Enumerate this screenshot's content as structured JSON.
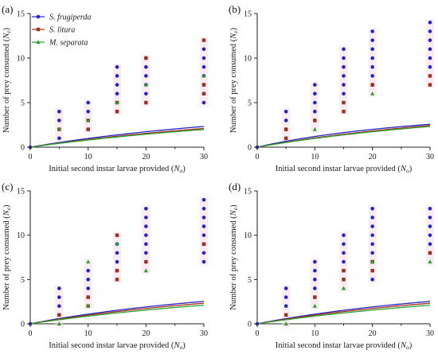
{
  "figure": {
    "xlabel_prefix": "Initial second instar larvae provided (",
    "xlabel_var": "N",
    "xlabel_sub": "o",
    "xlabel_suffix": ")",
    "ylabel_prefix": "Number of prey consumed (",
    "ylabel_var": "N",
    "ylabel_sub": "e",
    "ylabel_suffix": ")",
    "legend": [
      {
        "name": "S. frugiperda",
        "color": "#2323c8",
        "marker": "circle"
      },
      {
        "name": "S. litura",
        "color": "#a0301e",
        "marker": "square"
      },
      {
        "name": "M. separata",
        "color": "#2ca02c",
        "marker": "triangle"
      }
    ]
  },
  "chart_data": [
    {
      "panel": "(a)",
      "type": "scatter",
      "xlim": [
        0,
        30
      ],
      "ylim": [
        0,
        15
      ],
      "xticks": [
        0,
        10,
        20,
        30
      ],
      "yticks": [
        0,
        5,
        10,
        15
      ],
      "series": [
        {
          "name": "S. frugiperda",
          "color": "#2323c8",
          "marker": "circle",
          "curve": {
            "a": 0.075,
            "b": 0.02
          },
          "points": [
            [
              5,
              1
            ],
            [
              5,
              2
            ],
            [
              5,
              3
            ],
            [
              5,
              4
            ],
            [
              10,
              2
            ],
            [
              10,
              3
            ],
            [
              10,
              4
            ],
            [
              10,
              5
            ],
            [
              15,
              5
            ],
            [
              15,
              6
            ],
            [
              15,
              7
            ],
            [
              15,
              8
            ],
            [
              15,
              9
            ],
            [
              20,
              6
            ],
            [
              20,
              7
            ],
            [
              20,
              8
            ],
            [
              20,
              9
            ],
            [
              20,
              10
            ],
            [
              30,
              5
            ],
            [
              30,
              6
            ],
            [
              30,
              7
            ],
            [
              30,
              8
            ],
            [
              30,
              9
            ],
            [
              30,
              10
            ],
            [
              30,
              11
            ]
          ]
        },
        {
          "name": "S. litura",
          "color": "#a0301e",
          "marker": "square",
          "curve": {
            "a": 0.065,
            "b": 0.02
          },
          "points": [
            [
              5,
              2
            ],
            [
              10,
              2
            ],
            [
              10,
              3
            ],
            [
              15,
              4
            ],
            [
              15,
              5
            ],
            [
              20,
              5
            ],
            [
              20,
              10
            ],
            [
              30,
              6
            ],
            [
              30,
              7
            ],
            [
              30,
              12
            ]
          ]
        },
        {
          "name": "M. separata",
          "color": "#2ca02c",
          "marker": "triangle",
          "curve": {
            "a": 0.06,
            "b": 0.02
          },
          "points": [
            [
              5,
              2
            ],
            [
              10,
              3
            ],
            [
              15,
              5
            ],
            [
              20,
              7
            ],
            [
              30,
              8
            ]
          ]
        }
      ]
    },
    {
      "panel": "(b)",
      "type": "scatter",
      "xlim": [
        0,
        30
      ],
      "ylim": [
        0,
        15
      ],
      "xticks": [
        0,
        10,
        20,
        30
      ],
      "yticks": [
        0,
        5,
        10,
        15
      ],
      "series": [
        {
          "name": "S. frugiperda",
          "color": "#2323c8",
          "marker": "circle",
          "curve": {
            "a": 0.1,
            "b": 0.025
          },
          "points": [
            [
              5,
              2
            ],
            [
              5,
              3
            ],
            [
              5,
              4
            ],
            [
              10,
              3
            ],
            [
              10,
              4
            ],
            [
              10,
              5
            ],
            [
              10,
              6
            ],
            [
              10,
              7
            ],
            [
              15,
              6
            ],
            [
              15,
              7
            ],
            [
              15,
              8
            ],
            [
              15,
              9
            ],
            [
              15,
              10
            ],
            [
              15,
              11
            ],
            [
              20,
              7
            ],
            [
              20,
              8
            ],
            [
              20,
              9
            ],
            [
              20,
              10
            ],
            [
              20,
              11
            ],
            [
              20,
              12
            ],
            [
              20,
              13
            ],
            [
              30,
              9
            ],
            [
              30,
              10
            ],
            [
              30,
              11
            ],
            [
              30,
              12
            ],
            [
              30,
              13
            ],
            [
              30,
              14
            ]
          ]
        },
        {
          "name": "S. litura",
          "color": "#a0301e",
          "marker": "square",
          "curve": {
            "a": 0.08,
            "b": 0.02
          },
          "points": [
            [
              5,
              1
            ],
            [
              5,
              2
            ],
            [
              10,
              3
            ],
            [
              15,
              4
            ],
            [
              15,
              5
            ],
            [
              20,
              7
            ],
            [
              30,
              7
            ],
            [
              30,
              8
            ]
          ]
        },
        {
          "name": "M. separata",
          "color": "#2ca02c",
          "marker": "triangle",
          "curve": {
            "a": 0.075,
            "b": 0.02
          },
          "points": [
            [
              10,
              2
            ],
            [
              20,
              6
            ]
          ]
        }
      ]
    },
    {
      "panel": "(c)",
      "type": "scatter",
      "xlim": [
        0,
        30
      ],
      "ylim": [
        0,
        15
      ],
      "xticks": [
        0,
        10,
        20,
        30
      ],
      "yticks": [
        0,
        5,
        10,
        15
      ],
      "series": [
        {
          "name": "S. frugiperda",
          "color": "#2323c8",
          "marker": "circle",
          "curve": {
            "a": 0.085,
            "b": 0.02
          },
          "points": [
            [
              5,
              1
            ],
            [
              5,
              2
            ],
            [
              5,
              3
            ],
            [
              5,
              4
            ],
            [
              10,
              3
            ],
            [
              10,
              4
            ],
            [
              10,
              5
            ],
            [
              10,
              6
            ],
            [
              15,
              6
            ],
            [
              15,
              7
            ],
            [
              15,
              8
            ],
            [
              15,
              9
            ],
            [
              20,
              8
            ],
            [
              20,
              9
            ],
            [
              20,
              10
            ],
            [
              20,
              11
            ],
            [
              20,
              12
            ],
            [
              20,
              13
            ],
            [
              30,
              7
            ],
            [
              30,
              8
            ],
            [
              30,
              9
            ],
            [
              30,
              10
            ],
            [
              30,
              11
            ],
            [
              30,
              12
            ],
            [
              30,
              13
            ],
            [
              30,
              14
            ]
          ]
        },
        {
          "name": "S. litura",
          "color": "#a0301e",
          "marker": "square",
          "curve": {
            "a": 0.075,
            "b": 0.02
          },
          "points": [
            [
              5,
              1
            ],
            [
              10,
              2
            ],
            [
              10,
              3
            ],
            [
              15,
              5
            ],
            [
              15,
              6
            ],
            [
              15,
              10
            ],
            [
              20,
              7
            ],
            [
              30,
              9
            ]
          ]
        },
        {
          "name": "M. separata",
          "color": "#2ca02c",
          "marker": "triangle",
          "curve": {
            "a": 0.065,
            "b": 0.02
          },
          "points": [
            [
              5,
              0
            ],
            [
              10,
              2
            ],
            [
              10,
              7
            ],
            [
              15,
              9
            ],
            [
              20,
              6
            ]
          ]
        }
      ]
    },
    {
      "panel": "(d)",
      "type": "scatter",
      "xlim": [
        0,
        30
      ],
      "ylim": [
        0,
        15
      ],
      "xticks": [
        0,
        10,
        20,
        30
      ],
      "yticks": [
        0,
        5,
        10,
        15
      ],
      "series": [
        {
          "name": "S. frugiperda",
          "color": "#2323c8",
          "marker": "circle",
          "curve": {
            "a": 0.085,
            "b": 0.02
          },
          "points": [
            [
              5,
              1
            ],
            [
              5,
              2
            ],
            [
              5,
              3
            ],
            [
              5,
              4
            ],
            [
              10,
              3
            ],
            [
              10,
              4
            ],
            [
              10,
              5
            ],
            [
              10,
              6
            ],
            [
              10,
              7
            ],
            [
              15,
              5
            ],
            [
              15,
              6
            ],
            [
              15,
              7
            ],
            [
              15,
              8
            ],
            [
              15,
              9
            ],
            [
              15,
              10
            ],
            [
              20,
              5
            ],
            [
              20,
              6
            ],
            [
              20,
              7
            ],
            [
              20,
              8
            ],
            [
              20,
              9
            ],
            [
              20,
              10
            ],
            [
              20,
              11
            ],
            [
              20,
              12
            ],
            [
              20,
              13
            ],
            [
              30,
              8
            ],
            [
              30,
              9
            ],
            [
              30,
              10
            ],
            [
              30,
              11
            ],
            [
              30,
              12
            ],
            [
              30,
              13
            ]
          ]
        },
        {
          "name": "S. litura",
          "color": "#a0301e",
          "marker": "square",
          "curve": {
            "a": 0.075,
            "b": 0.02
          },
          "points": [
            [
              5,
              1
            ],
            [
              10,
              3
            ],
            [
              15,
              5
            ],
            [
              15,
              6
            ],
            [
              20,
              6
            ],
            [
              20,
              7
            ],
            [
              30,
              8
            ]
          ]
        },
        {
          "name": "M. separata",
          "color": "#2ca02c",
          "marker": "triangle",
          "curve": {
            "a": 0.065,
            "b": 0.02
          },
          "points": [
            [
              5,
              0
            ],
            [
              10,
              2
            ],
            [
              15,
              4
            ],
            [
              20,
              7
            ],
            [
              30,
              7
            ]
          ]
        }
      ]
    }
  ]
}
